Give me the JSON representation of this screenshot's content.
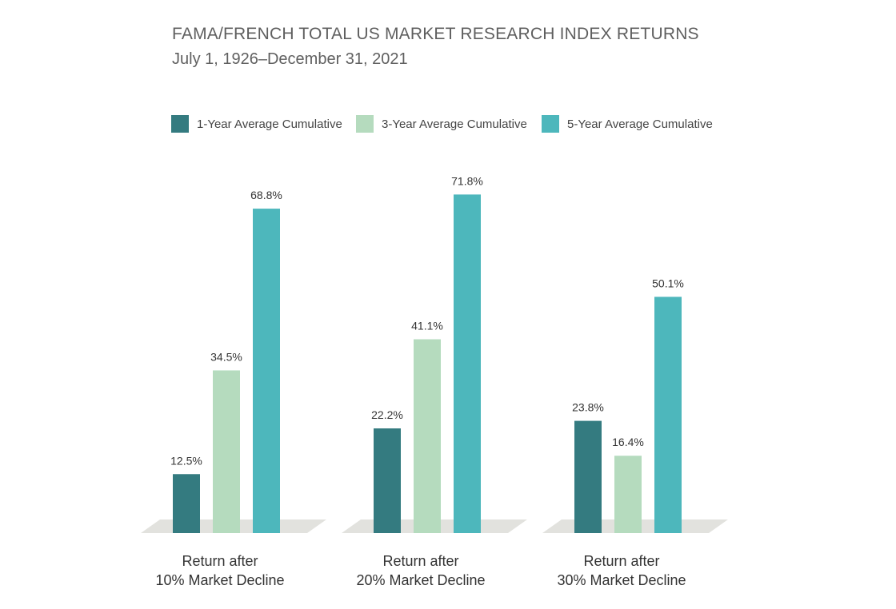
{
  "chart_data": {
    "type": "bar",
    "title": "FAMA/FRENCH TOTAL US MARKET RESEARCH INDEX RETURNS",
    "subtitle": "July 1, 1926–December 31, 2021",
    "categories": [
      [
        "Return after",
        "10% Market Decline"
      ],
      [
        "Return after",
        "20% Market Decline"
      ],
      [
        "Return after",
        "30% Market Decline"
      ]
    ],
    "series": [
      {
        "name": "1-Year Average Cumulative",
        "color": "#347b80",
        "values": [
          12.5,
          22.2,
          23.8
        ],
        "labels": [
          "12.5%",
          "22.2%",
          "23.8%"
        ]
      },
      {
        "name": "3-Year Average Cumulative",
        "color": "#b5dbbe",
        "values": [
          34.5,
          41.1,
          16.4
        ],
        "labels": [
          "34.5%",
          "41.1%",
          "16.4%"
        ]
      },
      {
        "name": "5-Year Average Cumulative",
        "color": "#4db7bc",
        "values": [
          68.8,
          71.8,
          50.1
        ],
        "labels": [
          "68.8%",
          "71.8%",
          "50.1%"
        ]
      }
    ],
    "ylim": [
      0,
      80
    ],
    "legend_position": "top",
    "grid": false
  }
}
